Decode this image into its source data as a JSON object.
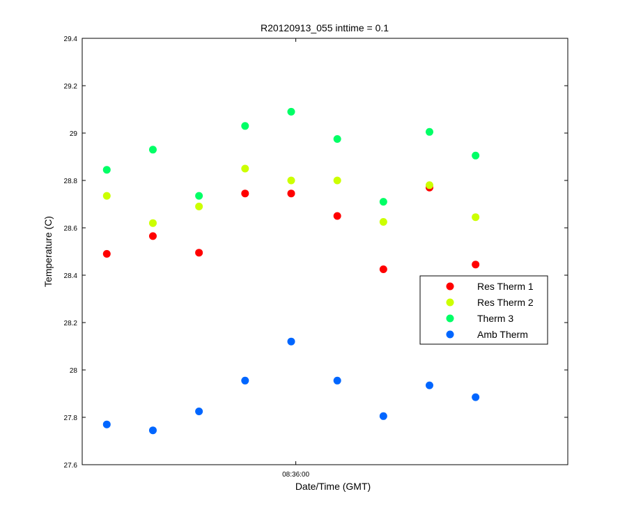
{
  "chart_data": {
    "type": "scatter",
    "title": "R20120913_055 inttime = 0.1",
    "xlabel": "Date/Time (GMT)",
    "ylabel": "Temperature (C)",
    "ylim": [
      27.6,
      29.4
    ],
    "yticks": [
      27.6,
      27.8,
      28,
      28.2,
      28.4,
      28.6,
      28.8,
      29,
      29.2,
      29.4
    ],
    "ytick_labels": [
      "27.6",
      "27.8",
      "28",
      "28.2",
      "28.4",
      "28.6",
      "28.8",
      "29",
      "29.2",
      "29.4"
    ],
    "xticks": [
      0
    ],
    "xtick_labels": [
      "08:36:00"
    ],
    "x_unit": "seconds relative to 08:36:00",
    "xlim": [
      -139,
      177
    ],
    "x": [
      -123,
      -93,
      -63,
      -33,
      -3,
      27,
      57,
      87,
      117
    ],
    "grid": false,
    "legend_position": "right",
    "series": [
      {
        "name": "Res Therm 1",
        "color": "#ff0000",
        "values": [
          28.49,
          28.565,
          28.495,
          28.745,
          28.745,
          28.65,
          28.425,
          28.77,
          28.445
        ]
      },
      {
        "name": "Res Therm 2",
        "color": "#ccff00",
        "values": [
          28.735,
          28.62,
          28.69,
          28.85,
          28.8,
          28.8,
          28.625,
          28.78,
          28.645
        ]
      },
      {
        "name": "Therm 3",
        "color": "#00ff66",
        "values": [
          28.845,
          28.93,
          28.735,
          29.03,
          29.09,
          28.975,
          28.71,
          29.005,
          28.905
        ]
      },
      {
        "name": "Amb Therm",
        "color": "#0066ff",
        "values": [
          27.77,
          27.745,
          27.825,
          27.955,
          28.12,
          27.955,
          27.805,
          27.935,
          27.885
        ]
      }
    ]
  }
}
